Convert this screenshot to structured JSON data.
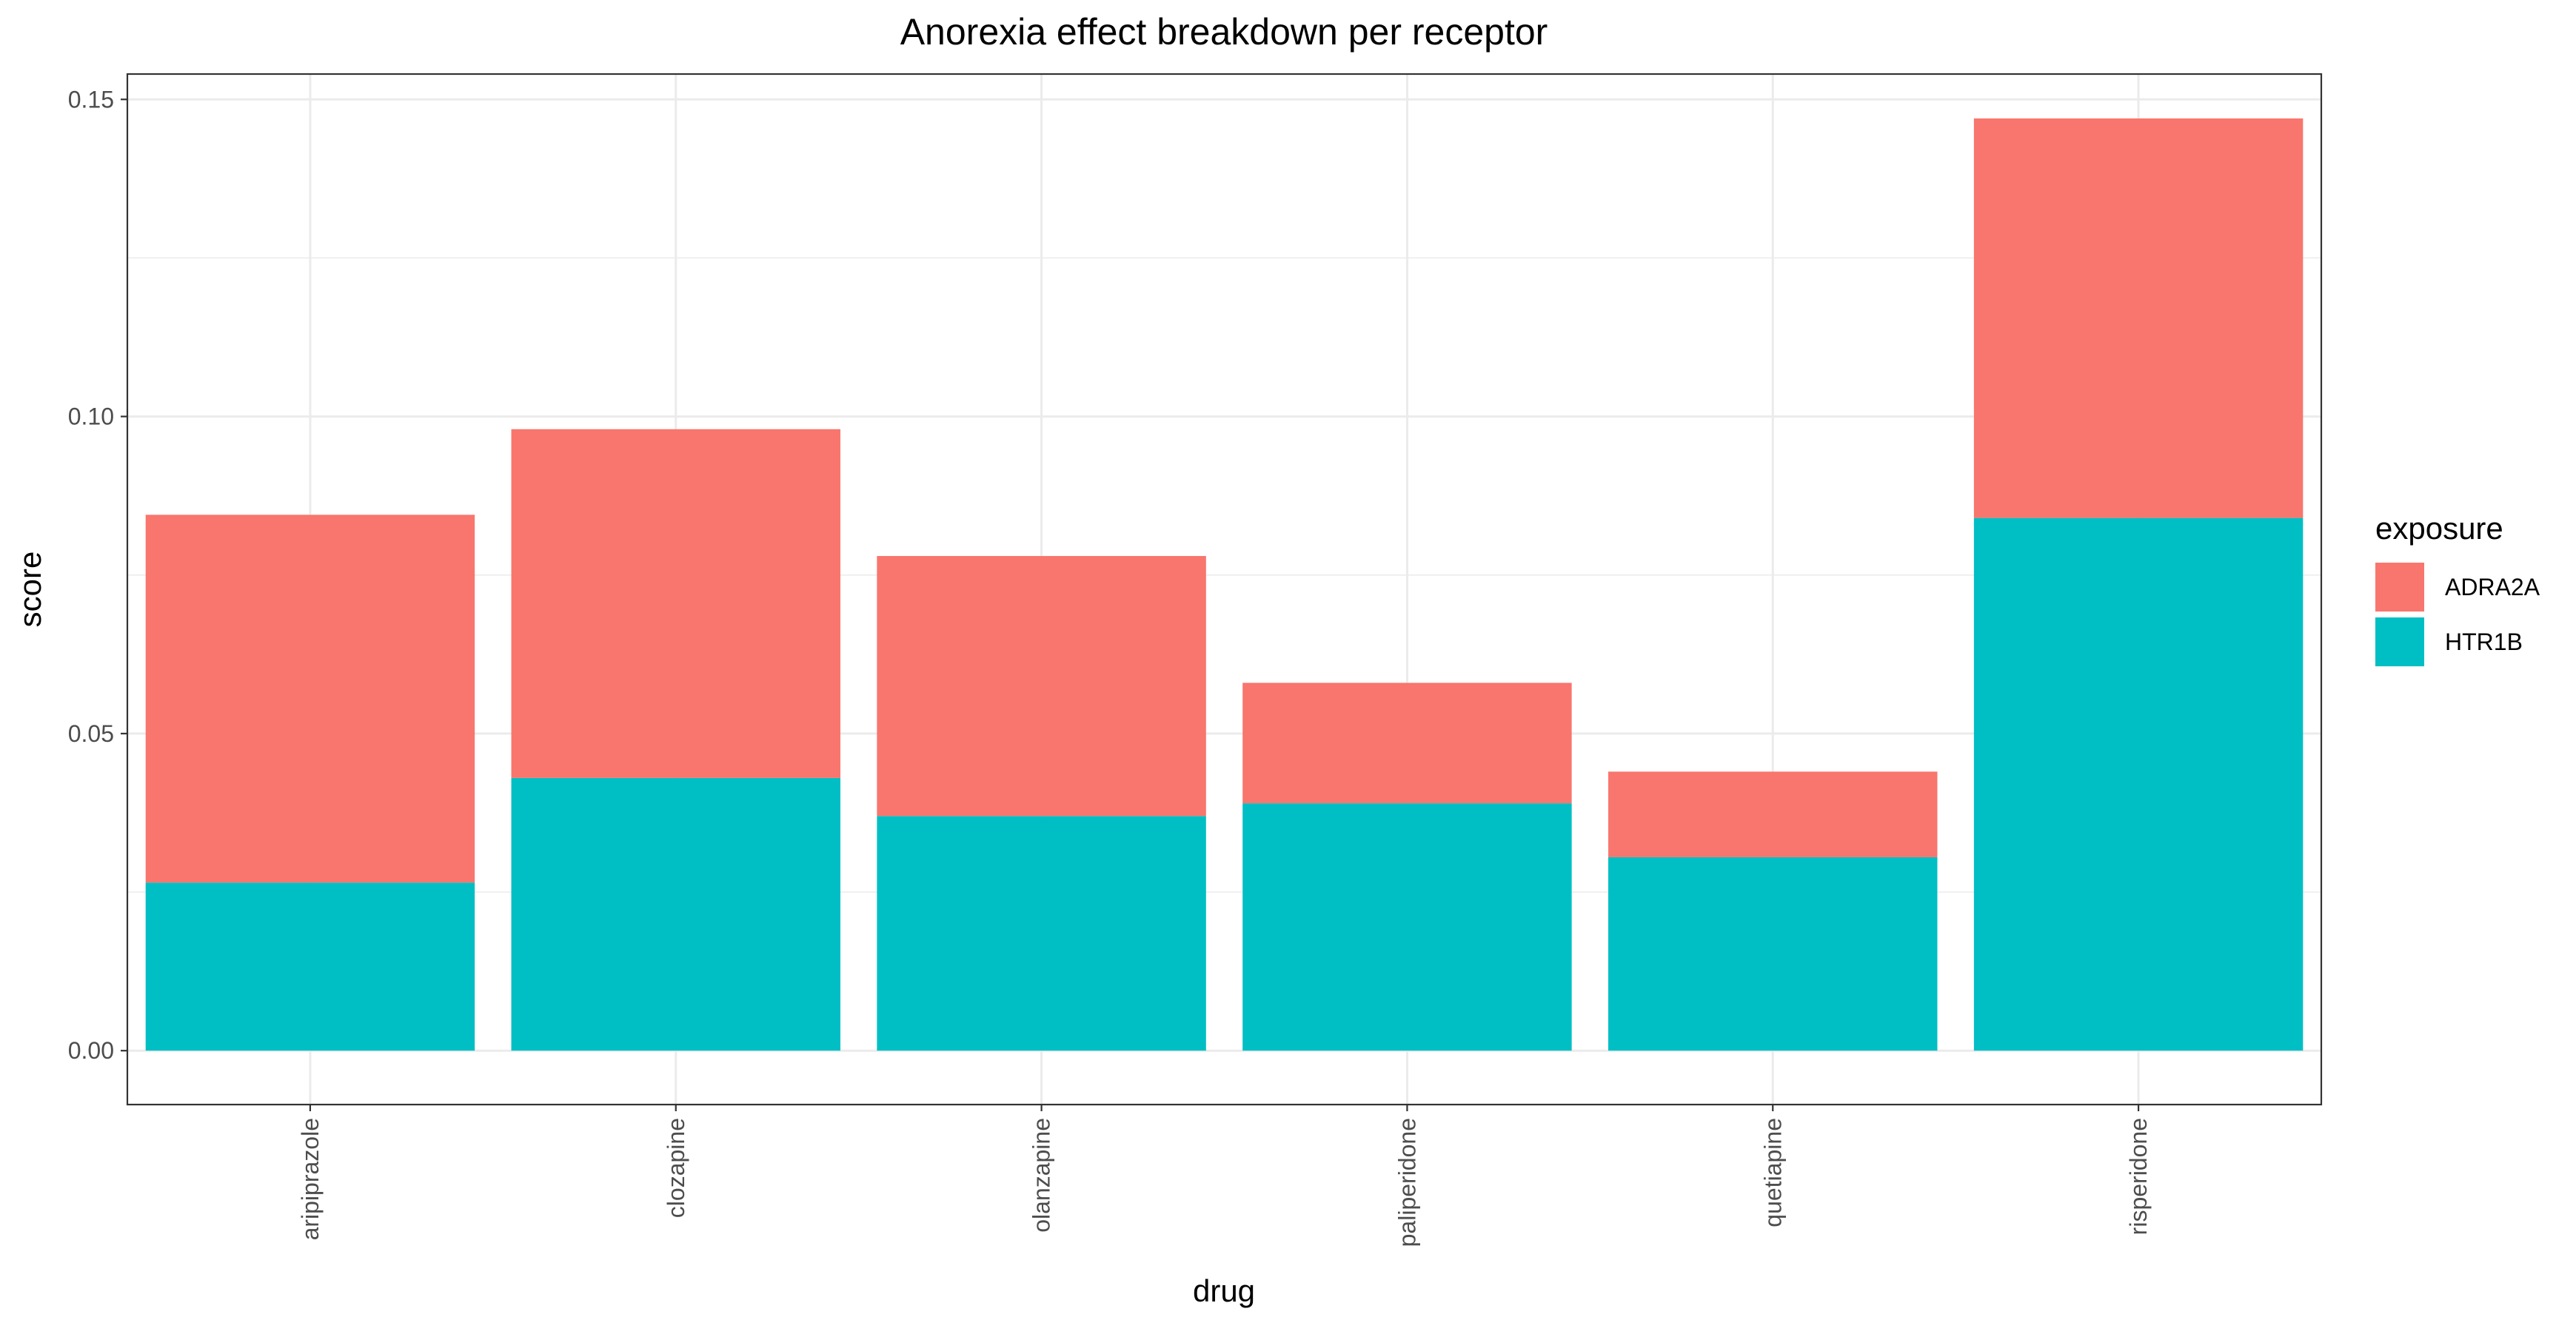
{
  "chart_data": {
    "type": "bar",
    "stacked": true,
    "title": "Anorexia effect breakdown per receptor",
    "xlabel": "drug",
    "ylabel": "score",
    "categories": [
      "aripiprazole",
      "clozapine",
      "olanzapine",
      "paliperidone",
      "quetiapine",
      "risperidone"
    ],
    "series": [
      {
        "name": "HTR1B",
        "color": "#00BFC4",
        "values": [
          0.0265,
          0.043,
          0.037,
          0.039,
          0.0305,
          0.084
        ]
      },
      {
        "name": "ADRA2A",
        "color": "#F8766D",
        "values": [
          0.058,
          0.055,
          0.041,
          0.019,
          0.0135,
          0.063
        ]
      }
    ],
    "ylim": [
      -0.0085,
      0.154
    ],
    "yticks": [
      0.0,
      0.05,
      0.1,
      0.15
    ],
    "ytick_labels": [
      "0.00",
      "0.05",
      "0.10",
      "0.15"
    ],
    "grid": true,
    "legend": {
      "title": "exposure",
      "position": "right",
      "entries": [
        {
          "label": "ADRA2A",
          "color": "#F8766D"
        },
        {
          "label": "HTR1B",
          "color": "#00BFC4"
        }
      ]
    }
  }
}
